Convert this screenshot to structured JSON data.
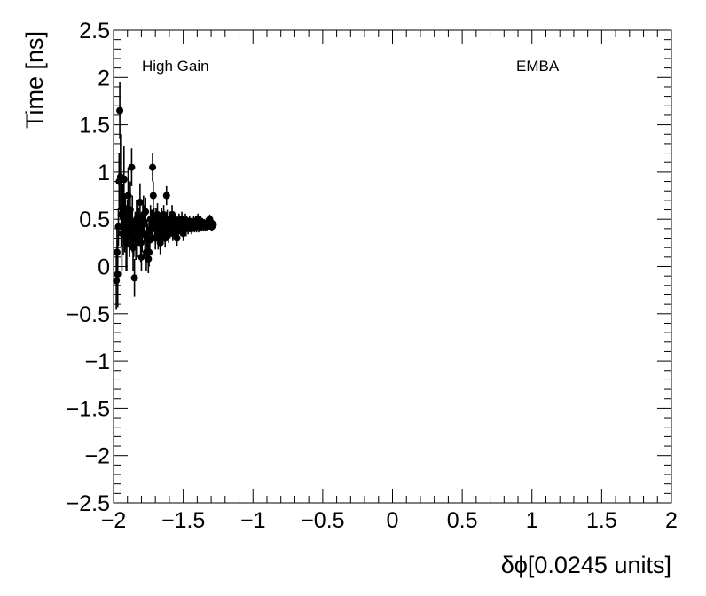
{
  "chart_data": {
    "type": "scatter",
    "xlabel": "δϕ[0.0245 units]",
    "ylabel": "Time [ns]",
    "xlim": [
      -2,
      2
    ],
    "ylim": [
      -2.5,
      2.5
    ],
    "x_ticks": [
      -2,
      -1.5,
      -1,
      -0.5,
      0,
      0.5,
      1,
      1.5,
      2
    ],
    "x_tick_labels": [
      "−2",
      "−1.5",
      "−1",
      "−0.5",
      "0",
      "0.5",
      "1",
      "1.5",
      "2"
    ],
    "y_ticks": [
      -2.5,
      -2,
      -1.5,
      -1,
      -0.5,
      0,
      0.5,
      1,
      1.5,
      2,
      2.5
    ],
    "y_tick_labels": [
      "−2.5",
      "−2",
      "−1.5",
      "−1",
      "−0.5",
      "0",
      "0.5",
      "1",
      "1.5",
      "2",
      "2.5"
    ],
    "annotations": {
      "left": "High Gain",
      "right": "EMBA"
    },
    "marker_color": "#000000",
    "series": [
      {
        "points": [
          [
            -1.98,
            -0.15,
            0.3
          ],
          [
            -1.975,
            0.15,
            0.25
          ],
          [
            -1.97,
            -0.08,
            0.35
          ],
          [
            -1.965,
            0.42,
            0.2
          ],
          [
            -1.96,
            0.9,
            0.3
          ],
          [
            -1.955,
            1.65,
            0.3
          ],
          [
            -1.95,
            0.95,
            0.45
          ],
          [
            -1.945,
            0.55,
            0.35
          ],
          [
            -1.94,
            0.35,
            0.4
          ],
          [
            -1.935,
            0.62,
            0.25
          ],
          [
            -1.93,
            0.42,
            0.3
          ],
          [
            -1.925,
            0.92,
            0.35
          ],
          [
            -1.92,
            0.45,
            0.3
          ],
          [
            -1.915,
            0.52,
            0.25
          ],
          [
            -1.91,
            0.3,
            0.35
          ],
          [
            -1.905,
            0.25,
            0.3
          ],
          [
            -1.9,
            0.45,
            0.25
          ],
          [
            -1.895,
            0.75,
            0.3
          ],
          [
            -1.89,
            0.4,
            0.2
          ],
          [
            -1.885,
            0.35,
            0.25
          ],
          [
            -1.88,
            0.6,
            0.3
          ],
          [
            -1.875,
            0.42,
            0.2
          ],
          [
            -1.87,
            1.05,
            0.2
          ],
          [
            -1.865,
            0.45,
            0.3
          ],
          [
            -1.86,
            0.2,
            0.25
          ],
          [
            -1.855,
            0.3,
            0.2
          ],
          [
            -1.85,
            -0.12,
            0.2
          ],
          [
            -1.845,
            0.38,
            0.2
          ],
          [
            -1.84,
            0.32,
            0.25
          ],
          [
            -1.835,
            0.5,
            0.2
          ],
          [
            -1.83,
            0.3,
            0.2
          ],
          [
            -1.825,
            0.45,
            0.2
          ],
          [
            -1.82,
            0.42,
            0.2
          ],
          [
            -1.815,
            0.4,
            0.15
          ],
          [
            -1.81,
            0.68,
            0.2
          ],
          [
            -1.805,
            0.25,
            0.2
          ],
          [
            -1.8,
            0.1,
            0.15
          ],
          [
            -1.795,
            0.35,
            0.2
          ],
          [
            -1.79,
            0.5,
            0.2
          ],
          [
            -1.785,
            0.55,
            0.2
          ],
          [
            -1.78,
            0.45,
            0.2
          ],
          [
            -1.775,
            0.35,
            0.2
          ],
          [
            -1.77,
            0.58,
            0.15
          ],
          [
            -1.765,
            0.15,
            0.2
          ],
          [
            -1.76,
            0.35,
            0.15
          ],
          [
            -1.755,
            0.3,
            0.15
          ],
          [
            -1.75,
            0.08,
            0.15
          ],
          [
            -1.745,
            0.15,
            0.15
          ],
          [
            -1.74,
            0.28,
            0.15
          ],
          [
            -1.735,
            0.5,
            0.15
          ],
          [
            -1.73,
            0.4,
            0.15
          ],
          [
            -1.725,
            0.45,
            0.15
          ],
          [
            -1.72,
            1.05,
            0.15
          ],
          [
            -1.715,
            0.75,
            0.15
          ],
          [
            -1.71,
            0.5,
            0.12
          ],
          [
            -1.705,
            0.4,
            0.12
          ],
          [
            -1.7,
            0.3,
            0.12
          ],
          [
            -1.695,
            0.5,
            0.12
          ],
          [
            -1.69,
            0.42,
            0.12
          ],
          [
            -1.685,
            0.55,
            0.12
          ],
          [
            -1.68,
            0.3,
            0.12
          ],
          [
            -1.675,
            0.45,
            0.12
          ],
          [
            -1.67,
            0.35,
            0.12
          ],
          [
            -1.665,
            0.25,
            0.12
          ],
          [
            -1.66,
            0.4,
            0.12
          ],
          [
            -1.655,
            0.5,
            0.12
          ],
          [
            -1.65,
            0.35,
            0.1
          ],
          [
            -1.645,
            0.45,
            0.1
          ],
          [
            -1.64,
            0.55,
            0.1
          ],
          [
            -1.635,
            0.48,
            0.1
          ],
          [
            -1.63,
            0.3,
            0.1
          ],
          [
            -1.625,
            0.42,
            0.1
          ],
          [
            -1.62,
            0.75,
            0.1
          ],
          [
            -1.615,
            0.5,
            0.1
          ],
          [
            -1.61,
            0.4,
            0.1
          ],
          [
            -1.605,
            0.35,
            0.1
          ],
          [
            -1.6,
            0.48,
            0.1
          ],
          [
            -1.595,
            0.4,
            0.1
          ],
          [
            -1.59,
            0.45,
            0.1
          ],
          [
            -1.585,
            0.42,
            0.1
          ],
          [
            -1.58,
            0.55,
            0.1
          ],
          [
            -1.575,
            0.35,
            0.08
          ],
          [
            -1.57,
            0.45,
            0.08
          ],
          [
            -1.565,
            0.5,
            0.08
          ],
          [
            -1.56,
            0.4,
            0.08
          ],
          [
            -1.555,
            0.48,
            0.08
          ],
          [
            -1.55,
            0.42,
            0.08
          ],
          [
            -1.545,
            0.3,
            0.08
          ],
          [
            -1.54,
            0.45,
            0.08
          ],
          [
            -1.535,
            0.38,
            0.08
          ],
          [
            -1.53,
            0.48,
            0.08
          ],
          [
            -1.525,
            0.42,
            0.08
          ],
          [
            -1.52,
            0.45,
            0.08
          ],
          [
            -1.515,
            0.4,
            0.08
          ],
          [
            -1.51,
            0.5,
            0.08
          ],
          [
            -1.505,
            0.44,
            0.08
          ],
          [
            -1.5,
            0.35,
            0.08
          ],
          [
            -1.495,
            0.45,
            0.08
          ],
          [
            -1.49,
            0.42,
            0.08
          ],
          [
            -1.485,
            0.48,
            0.08
          ],
          [
            -1.48,
            0.4,
            0.08
          ],
          [
            -1.475,
            0.45,
            0.08
          ],
          [
            -1.47,
            0.46,
            0.06
          ],
          [
            -1.465,
            0.4,
            0.06
          ],
          [
            -1.46,
            0.44,
            0.06
          ],
          [
            -1.455,
            0.48,
            0.06
          ],
          [
            -1.45,
            0.42,
            0.06
          ],
          [
            -1.445,
            0.44,
            0.06
          ],
          [
            -1.44,
            0.4,
            0.06
          ],
          [
            -1.435,
            0.45,
            0.06
          ],
          [
            -1.43,
            0.43,
            0.06
          ],
          [
            -1.425,
            0.47,
            0.06
          ],
          [
            -1.42,
            0.42,
            0.06
          ],
          [
            -1.415,
            0.44,
            0.06
          ],
          [
            -1.41,
            0.48,
            0.06
          ],
          [
            -1.405,
            0.42,
            0.06
          ],
          [
            -1.4,
            0.45,
            0.06
          ],
          [
            -1.395,
            0.5,
            0.06
          ],
          [
            -1.39,
            0.42,
            0.06
          ],
          [
            -1.385,
            0.45,
            0.06
          ],
          [
            -1.38,
            0.43,
            0.06
          ],
          [
            -1.375,
            0.48,
            0.06
          ],
          [
            -1.37,
            0.42,
            0.05
          ],
          [
            -1.365,
            0.46,
            0.05
          ],
          [
            -1.36,
            0.44,
            0.05
          ],
          [
            -1.355,
            0.42,
            0.05
          ],
          [
            -1.35,
            0.45,
            0.05
          ],
          [
            -1.345,
            0.44,
            0.05
          ],
          [
            -1.34,
            0.42,
            0.05
          ],
          [
            -1.335,
            0.46,
            0.05
          ],
          [
            -1.33,
            0.44,
            0.05
          ],
          [
            -1.325,
            0.43,
            0.05
          ],
          [
            -1.32,
            0.45,
            0.05
          ],
          [
            -1.315,
            0.44,
            0.05
          ],
          [
            -1.31,
            0.5,
            0.05
          ],
          [
            -1.305,
            0.46,
            0.05
          ],
          [
            -1.3,
            0.44,
            0.05
          ],
          [
            -1.295,
            0.42,
            0.05
          ],
          [
            -1.29,
            0.45,
            0.05
          ],
          [
            -1.285,
            0.44,
            0.05
          ]
        ]
      }
    ]
  }
}
